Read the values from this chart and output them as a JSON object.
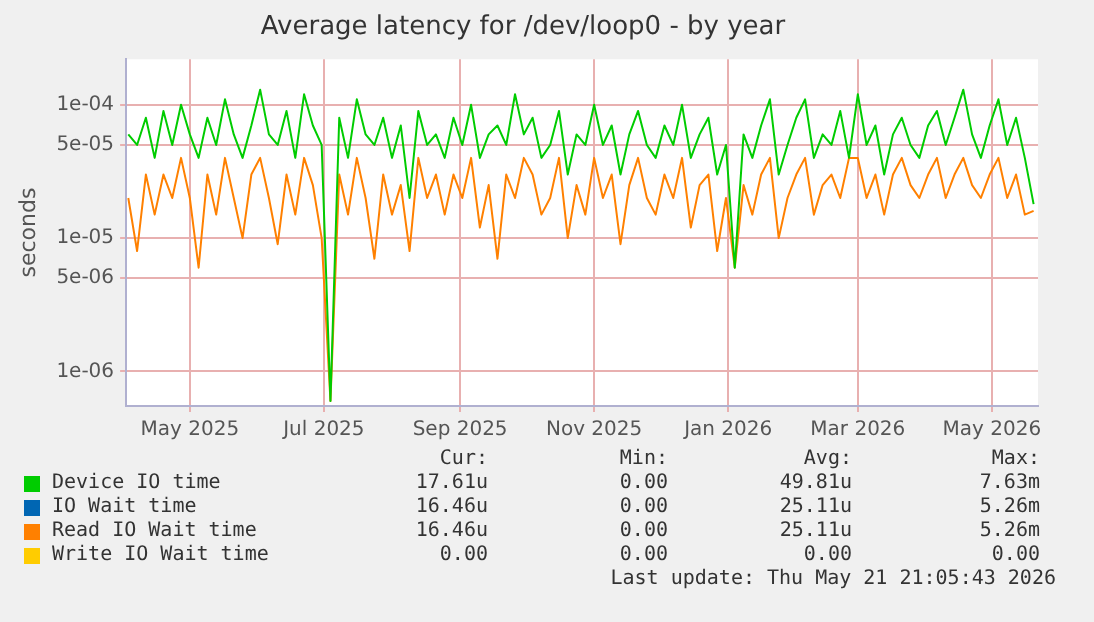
{
  "chart_data": {
    "type": "line",
    "title": "Average latency for /dev/loop0 - by year",
    "ylabel": "seconds",
    "log": "y",
    "grid": true,
    "legend": "bottom",
    "marker": "none",
    "line_style": "solid",
    "x": [
      "2025-04-03",
      "2025-04-07",
      "2025-04-11",
      "2025-04-15",
      "2025-04-19",
      "2025-04-23",
      "2025-04-27",
      "2025-05-01",
      "2025-05-05",
      "2025-05-09",
      "2025-05-13",
      "2025-05-17",
      "2025-05-21",
      "2025-05-25",
      "2025-05-29",
      "2025-06-02",
      "2025-06-06",
      "2025-06-10",
      "2025-06-14",
      "2025-06-18",
      "2025-06-22",
      "2025-06-26",
      "2025-06-30",
      "2025-07-04",
      "2025-07-08",
      "2025-07-12",
      "2025-07-16",
      "2025-07-20",
      "2025-07-24",
      "2025-07-28",
      "2025-08-01",
      "2025-08-05",
      "2025-08-09",
      "2025-08-13",
      "2025-08-17",
      "2025-08-21",
      "2025-08-25",
      "2025-08-29",
      "2025-09-02",
      "2025-09-06",
      "2025-09-10",
      "2025-09-14",
      "2025-09-18",
      "2025-09-22",
      "2025-09-26",
      "2025-09-30",
      "2025-10-04",
      "2025-10-08",
      "2025-10-12",
      "2025-10-16",
      "2025-10-20",
      "2025-10-24",
      "2025-10-28",
      "2025-11-01",
      "2025-11-05",
      "2025-11-09",
      "2025-11-13",
      "2025-11-17",
      "2025-11-21",
      "2025-11-25",
      "2025-11-29",
      "2025-12-03",
      "2025-12-07",
      "2025-12-11",
      "2025-12-15",
      "2025-12-19",
      "2025-12-23",
      "2025-12-27",
      "2025-12-31",
      "2026-01-04",
      "2026-01-08",
      "2026-01-12",
      "2026-01-16",
      "2026-01-20",
      "2026-01-24",
      "2026-01-28",
      "2026-02-01",
      "2026-02-05",
      "2026-02-09",
      "2026-02-13",
      "2026-02-17",
      "2026-02-21",
      "2026-02-25",
      "2026-03-01",
      "2026-03-05",
      "2026-03-09",
      "2026-03-13",
      "2026-03-17",
      "2026-03-21",
      "2026-03-25",
      "2026-03-29",
      "2026-04-02",
      "2026-04-06",
      "2026-04-10",
      "2026-04-14",
      "2026-04-18",
      "2026-04-22",
      "2026-04-26",
      "2026-04-30",
      "2026-05-04",
      "2026-05-08",
      "2026-05-12",
      "2026-05-16",
      "2026-05-20"
    ],
    "xlim": [
      "2025-04-02",
      "2026-05-22"
    ],
    "xticks": [
      {
        "value": "2025-05-01",
        "label": "May 2025"
      },
      {
        "value": "2025-07-01",
        "label": "Jul 2025"
      },
      {
        "value": "2025-09-01",
        "label": "Sep 2025"
      },
      {
        "value": "2025-11-01",
        "label": "Nov 2025"
      },
      {
        "value": "2026-01-01",
        "label": "Jan 2026"
      },
      {
        "value": "2026-03-01",
        "label": "Mar 2026"
      },
      {
        "value": "2026-05-01",
        "label": "May 2026"
      }
    ],
    "ylim": [
      5.5e-07,
      0.00022
    ],
    "yticks": [
      {
        "value": 1e-06,
        "label": "1e-06"
      },
      {
        "value": 5e-06,
        "label": "5e-06"
      },
      {
        "value": 1e-05,
        "label": "1e-05"
      },
      {
        "value": 5e-05,
        "label": "5e-05"
      },
      {
        "value": 0.0001,
        "label": "1e-04"
      }
    ],
    "series": [
      {
        "name": "Device IO time",
        "color": "#00cc00",
        "values": [
          6e-05,
          5e-05,
          8e-05,
          4e-05,
          9e-05,
          5e-05,
          0.0001,
          6e-05,
          4e-05,
          8e-05,
          5e-05,
          0.00011,
          6e-05,
          4e-05,
          7e-05,
          0.00013,
          6e-05,
          5e-05,
          9e-05,
          4e-05,
          0.00012,
          7e-05,
          5e-05,
          6e-07,
          8e-05,
          4e-05,
          0.00011,
          6e-05,
          5e-05,
          8e-05,
          4e-05,
          7e-05,
          2e-05,
          9e-05,
          5e-05,
          6e-05,
          4e-05,
          8e-05,
          5e-05,
          0.0001,
          4e-05,
          6e-05,
          7e-05,
          5e-05,
          0.00012,
          6e-05,
          8e-05,
          4e-05,
          5e-05,
          9e-05,
          3e-05,
          6e-05,
          5e-05,
          0.0001,
          5e-05,
          7e-05,
          3e-05,
          6e-05,
          9e-05,
          5e-05,
          4e-05,
          7e-05,
          5e-05,
          0.0001,
          4e-05,
          6e-05,
          8e-05,
          3e-05,
          5e-05,
          6e-06,
          6e-05,
          4e-05,
          7e-05,
          0.00011,
          3e-05,
          5e-05,
          8e-05,
          0.00011,
          4e-05,
          6e-05,
          5e-05,
          9e-05,
          4e-05,
          0.00012,
          5e-05,
          7e-05,
          3e-05,
          6e-05,
          8e-05,
          5e-05,
          4e-05,
          7e-05,
          9e-05,
          5e-05,
          8e-05,
          0.00013,
          6e-05,
          4e-05,
          7e-05,
          0.00011,
          5e-05,
          8e-05,
          4e-05,
          1.8e-05
        ]
      },
      {
        "name": "IO Wait time",
        "color": "#0066b3",
        "values": [
          null,
          null,
          null,
          null,
          null,
          null,
          null,
          null,
          null,
          null,
          null,
          null,
          null,
          null,
          null,
          null,
          null,
          null,
          null,
          null,
          null,
          null,
          null,
          null,
          null,
          null,
          null,
          null,
          null,
          null,
          null,
          null,
          null,
          null,
          null,
          null,
          null,
          null,
          null,
          null,
          null,
          null,
          null,
          null,
          null,
          null,
          null,
          null,
          null,
          null,
          null,
          null,
          null,
          null,
          null,
          null,
          null,
          null,
          null,
          null,
          null,
          null,
          null,
          null,
          null,
          null,
          null,
          null,
          null,
          null,
          null,
          null,
          null,
          null,
          null,
          null,
          null,
          null,
          null,
          null,
          null,
          null,
          null,
          null,
          null,
          null,
          null,
          null,
          null,
          null,
          null,
          null,
          null,
          null,
          null,
          null,
          null,
          null,
          null,
          null,
          null,
          null,
          null,
          null
        ]
      },
      {
        "name": "Read IO Wait time",
        "color": "#ff8000",
        "values": [
          2e-05,
          8e-06,
          3e-05,
          1.5e-05,
          3e-05,
          2e-05,
          4e-05,
          2e-05,
          6e-06,
          3e-05,
          1.5e-05,
          4e-05,
          2e-05,
          1e-05,
          3e-05,
          4e-05,
          2e-05,
          9e-06,
          3e-05,
          1.5e-05,
          4e-05,
          2.5e-05,
          1e-05,
          6e-07,
          3e-05,
          1.5e-05,
          4e-05,
          2e-05,
          7e-06,
          3e-05,
          1.5e-05,
          2.5e-05,
          8e-06,
          4e-05,
          2e-05,
          3e-05,
          1.5e-05,
          3e-05,
          2e-05,
          4e-05,
          1.2e-05,
          2.5e-05,
          7e-06,
          3e-05,
          2e-05,
          4e-05,
          3e-05,
          1.5e-05,
          2e-05,
          4e-05,
          1e-05,
          2.5e-05,
          1.5e-05,
          4e-05,
          2e-05,
          3e-05,
          9e-06,
          2.5e-05,
          4e-05,
          2e-05,
          1.5e-05,
          3e-05,
          2e-05,
          4e-05,
          1.2e-05,
          2.5e-05,
          3e-05,
          8e-06,
          2e-05,
          6e-06,
          2.5e-05,
          1.5e-05,
          3e-05,
          4e-05,
          1e-05,
          2e-05,
          3e-05,
          4e-05,
          1.5e-05,
          2.5e-05,
          3e-05,
          2e-05,
          4e-05,
          4e-05,
          2e-05,
          3e-05,
          1.5e-05,
          3e-05,
          4e-05,
          2.5e-05,
          2e-05,
          3e-05,
          4e-05,
          2e-05,
          3e-05,
          4e-05,
          2.5e-05,
          2e-05,
          3e-05,
          4e-05,
          2e-05,
          3e-05,
          1.5e-05,
          1.6e-05
        ]
      },
      {
        "name": "Write IO Wait time",
        "color": "#ffcc00",
        "values": [
          null,
          null,
          null,
          null,
          null,
          null,
          null,
          null,
          null,
          null,
          null,
          null,
          null,
          null,
          null,
          null,
          null,
          null,
          null,
          null,
          null,
          null,
          null,
          null,
          null,
          null,
          null,
          null,
          null,
          null,
          null,
          null,
          null,
          null,
          null,
          null,
          null,
          null,
          null,
          null,
          null,
          null,
          null,
          null,
          null,
          null,
          null,
          null,
          null,
          null,
          null,
          null,
          null,
          null,
          null,
          null,
          null,
          null,
          null,
          null,
          null,
          null,
          null,
          null,
          null,
          null,
          null,
          null,
          null,
          null,
          null,
          null,
          null,
          null,
          null,
          null,
          null,
          null,
          null,
          null,
          null,
          null,
          null,
          null,
          null,
          null,
          null,
          null,
          null,
          null,
          null,
          null,
          null,
          null,
          null,
          null,
          null,
          null,
          null,
          null,
          null,
          null,
          null,
          null
        ]
      }
    ],
    "annotations": [
      "Cur:",
      "Min:",
      "Avg:",
      "Max:",
      "17.61u",
      "0.00",
      "49.81u",
      "7.63m",
      "16.46u",
      "0.00",
      "25.11u",
      "5.26m",
      "16.46u",
      "0.00",
      "25.11u",
      "5.26m",
      "0.00",
      "0.00",
      "0.00",
      "0.00",
      "Last update: Thu May 21 21:05:43 2026"
    ]
  }
}
